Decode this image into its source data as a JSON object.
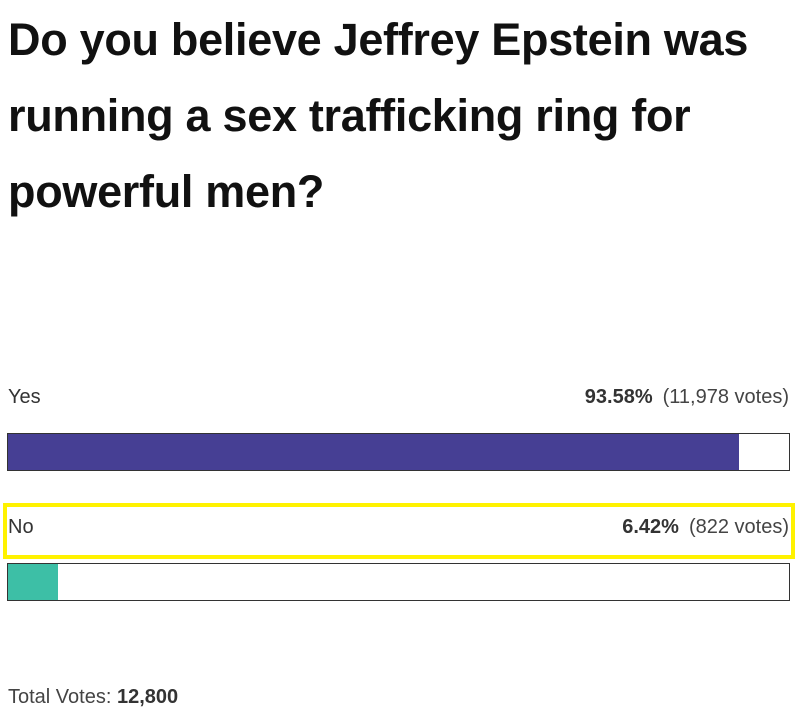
{
  "poll": {
    "question": "Do you believe Jeffrey Epstein was running a sex trafficking ring for powerful men?",
    "options": [
      {
        "label": "Yes",
        "percent": 93.58,
        "percent_label": "93.58%",
        "votes_label": "(11,978 votes)",
        "color": "#463f94",
        "highlighted": false
      },
      {
        "label": "No",
        "percent": 6.42,
        "percent_label": "6.42%",
        "votes_label": "(822 votes)",
        "color": "#3dbfa6",
        "highlighted": true
      }
    ],
    "total_label": "Total Votes:",
    "total": "12,800"
  }
}
